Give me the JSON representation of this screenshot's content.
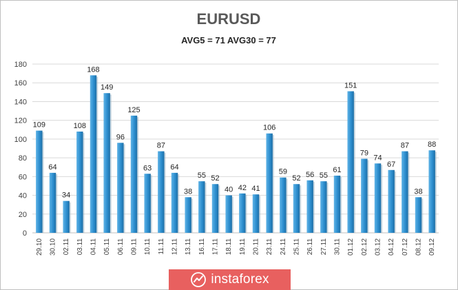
{
  "chart_data": {
    "type": "bar",
    "title": "EURUSD",
    "subtitle": "AVG5 = 71 AVG30 = 77",
    "xlabel": "",
    "ylabel": "",
    "ylim": [
      0,
      180
    ],
    "yticks": [
      0,
      20,
      40,
      60,
      80,
      100,
      120,
      140,
      160,
      180
    ],
    "grid": true,
    "bar_color": "#2c8ecf",
    "categories": [
      "29.10",
      "30.10",
      "02.11",
      "03.11",
      "04.11",
      "05.11",
      "06.11",
      "09.11",
      "10.11",
      "11.11",
      "12.11",
      "13.11",
      "16.11",
      "17.11",
      "18.11",
      "19.11",
      "20.11",
      "23.11",
      "24.11",
      "25.11",
      "26.11",
      "27.11",
      "30.11",
      "01.12",
      "02.12",
      "03.12",
      "04.12",
      "07.12",
      "08.12",
      "09.12"
    ],
    "values": [
      109,
      64,
      34,
      108,
      168,
      149,
      96,
      125,
      63,
      87,
      64,
      38,
      55,
      52,
      40,
      42,
      41,
      106,
      59,
      52,
      56,
      55,
      61,
      151,
      79,
      74,
      67,
      87,
      38,
      88
    ]
  },
  "brand": {
    "text": "instaforex",
    "color": "#e8605f",
    "logo_icon": "instaforex-logo-icon"
  }
}
